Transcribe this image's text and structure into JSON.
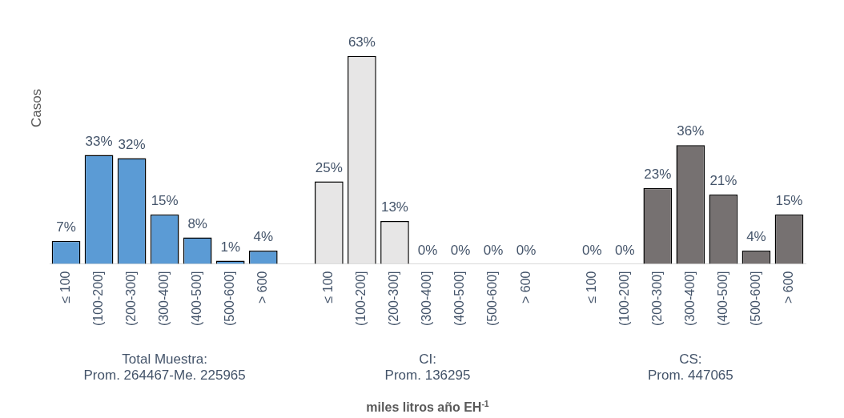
{
  "chart_data": {
    "type": "bar",
    "ylabel": "Casos",
    "categories": [
      "≤ 100",
      "(100-200]",
      "(200-300]",
      "(300-400]",
      "(400-500]",
      "(500-600]",
      "> 600",
      null,
      "≤ 100",
      "(100-200]",
      "(200-300]",
      "(300-400]",
      "(400-500]",
      "(500-600]",
      "> 600",
      null,
      "≤ 100",
      "(100-200]",
      "(200-300]",
      "(300-400]",
      "(400-500]",
      "(500-600]",
      "> 600"
    ],
    "series": [
      {
        "color": "#5b9bd5",
        "values": [
          7,
          33,
          32,
          15,
          8,
          1,
          4,
          null,
          null,
          null,
          null,
          null,
          null,
          null,
          null,
          null,
          null,
          null,
          null,
          null,
          null,
          null,
          null
        ],
        "value_labels": [
          "7%",
          "33%",
          "32%",
          "15%",
          "8%",
          "1%",
          "4%",
          null,
          null,
          null,
          null,
          null,
          null,
          null,
          null,
          null,
          null,
          null,
          null,
          null,
          null,
          null,
          null
        ]
      },
      {
        "color": "#e7e6e6",
        "values": [
          null,
          null,
          null,
          null,
          null,
          null,
          null,
          null,
          25,
          63,
          13,
          0,
          0,
          0,
          0,
          null,
          null,
          null,
          null,
          null,
          null,
          null,
          null
        ],
        "value_labels": [
          null,
          null,
          null,
          null,
          null,
          null,
          null,
          null,
          "25%",
          "63%",
          "13%",
          "0%",
          "0%",
          "0%",
          "0%",
          null,
          null,
          null,
          null,
          null,
          null,
          null,
          null
        ]
      },
      {
        "color": "#767171",
        "values": [
          null,
          null,
          null,
          null,
          null,
          null,
          null,
          null,
          null,
          null,
          null,
          null,
          null,
          null,
          null,
          null,
          0,
          0,
          23,
          36,
          21,
          4,
          15
        ],
        "value_labels": [
          null,
          null,
          null,
          null,
          null,
          null,
          null,
          null,
          null,
          null,
          null,
          null,
          null,
          null,
          null,
          null,
          "0%",
          "0%",
          "23%",
          "36%",
          "21%",
          "4%",
          "15%"
        ]
      }
    ],
    "annotations": [
      "Total Muestra:\nProm. 264467-Me. 225965",
      "CI:\nProm. 136295",
      "CS:\nProm. 447065",
      "miles litros año EH$^{-1}$"
    ],
    "grid": false,
    "legend": false
  }
}
